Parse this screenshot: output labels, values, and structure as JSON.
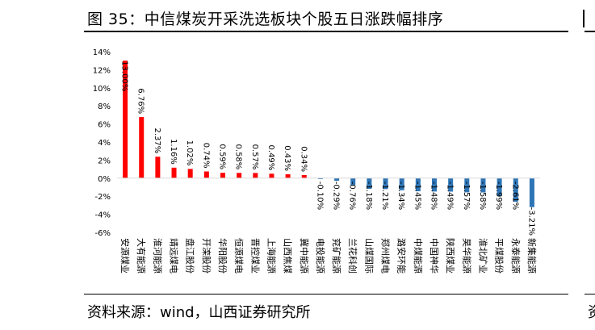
{
  "header": {
    "title": "图 35：中信煤炭开采洗选板块个股五日涨跌幅排序"
  },
  "footer": {
    "source": "资料来源：wind，山西证券研究所"
  },
  "colors": {
    "positive": "#ff0000",
    "negative": "#2e75b6",
    "axis": "#d9d9d9",
    "text": "#000000"
  },
  "chart_data": {
    "type": "bar",
    "title": "",
    "xlabel": "",
    "ylabel": "",
    "ylim": [
      -6,
      14
    ],
    "yticks": [
      14,
      12,
      10,
      8,
      6,
      4,
      2,
      0,
      -2,
      -4,
      -6
    ],
    "ytick_labels": [
      "14%",
      "12%",
      "10%",
      "8%",
      "6%",
      "4%",
      "2%",
      "0%",
      "-2%",
      "-4%",
      "-6%"
    ],
    "grid": false,
    "categories": [
      "安源煤业",
      "大有能源",
      "淮河能源",
      "靖远煤电",
      "盘江股份",
      "开滦股份",
      "华阳股份",
      "恒源煤电",
      "晋控煤业",
      "上海能源",
      "山西焦煤",
      "冀中能源",
      "电投能源",
      "兖矿能源",
      "兰花科创",
      "山煤国际",
      "郑州煤电",
      "潞安环能",
      "中煤能源",
      "中国神华",
      "陕西煤业",
      "昊华能源",
      "淮北矿业",
      "平煤股份",
      "永泰能源",
      "新集能源"
    ],
    "values": [
      13.0,
      6.76,
      2.37,
      1.16,
      1.02,
      0.74,
      0.59,
      0.58,
      0.57,
      0.49,
      0.43,
      0.34,
      -0.1,
      -0.29,
      -0.76,
      -1.18,
      -1.21,
      -1.34,
      -1.45,
      -1.48,
      -1.49,
      -1.57,
      -1.58,
      -1.99,
      -2.61,
      -3.21
    ],
    "value_labels": [
      "13.00%",
      "6.76%",
      "2.37%",
      "1.16%",
      "1.02%",
      "0.74%",
      "0.59%",
      "0.58%",
      "0.57%",
      "0.49%",
      "0.43%",
      "0.34%",
      "-0.10%",
      "-0.29%",
      "-0.76%",
      "-1.18%",
      "-1.21%",
      "-1.34%",
      "-1.45%",
      "-1.48%",
      "-1.49%",
      "-1.57%",
      "-1.58%",
      "-1.99%",
      "-2.61%",
      "-3.21%"
    ]
  }
}
